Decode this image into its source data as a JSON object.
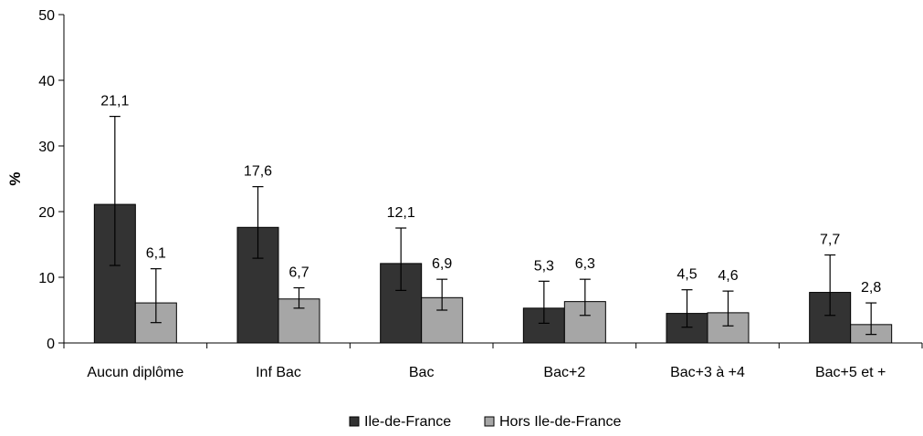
{
  "chart_data": {
    "type": "bar",
    "title": "",
    "xlabel": "",
    "ylabel": "%",
    "ylim": [
      0,
      50
    ],
    "yticks": [
      0,
      10,
      20,
      30,
      40,
      50
    ],
    "grid": false,
    "legend_position": "bottom",
    "categories": [
      "Aucun diplôme",
      "Inf Bac",
      "Bac",
      "Bac+2",
      "Bac+3 à +4",
      "Bac+5 et +"
    ],
    "series": [
      {
        "name": "Ile-de-France",
        "color": "#333333",
        "values": [
          21.1,
          17.6,
          12.1,
          5.3,
          4.5,
          7.7
        ],
        "labels": [
          "21,1",
          "17,6",
          "12,1",
          "5,3",
          "4,5",
          "7,7"
        ],
        "error_low": [
          11.8,
          12.9,
          8.0,
          3.0,
          2.4,
          4.2
        ],
        "error_high": [
          34.5,
          23.8,
          17.5,
          9.4,
          8.1,
          13.4
        ]
      },
      {
        "name": "Hors Ile-de-France",
        "color": "#a6a6a6",
        "values": [
          6.1,
          6.7,
          6.9,
          6.3,
          4.6,
          2.8
        ],
        "labels": [
          "6,1",
          "6,7",
          "6,9",
          "6,3",
          "4,6",
          "2,8"
        ],
        "error_low": [
          3.1,
          5.3,
          5.0,
          4.2,
          2.6,
          1.3
        ],
        "error_high": [
          11.3,
          8.4,
          9.7,
          9.7,
          7.9,
          6.1
        ]
      }
    ]
  }
}
